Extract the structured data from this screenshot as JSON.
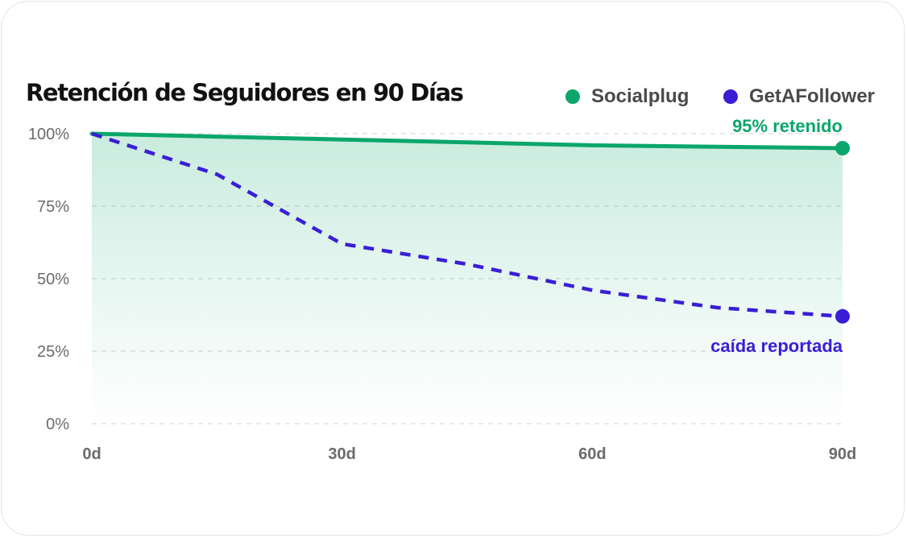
{
  "title": "Retención de Seguidores en 90 Días",
  "colors": {
    "socialplug": "#0ba66b",
    "getafollower": "#3a1ed6",
    "grid": "#d9d9d9",
    "tick": "#6b6b6b"
  },
  "chart_data": {
    "type": "line",
    "title": "Retención de Seguidores en 90 Días",
    "xlabel": "",
    "ylabel": "",
    "x": [
      0,
      15,
      30,
      45,
      60,
      75,
      90
    ],
    "xlim": [
      0,
      90
    ],
    "ylim": [
      0,
      100
    ],
    "xticks": [
      "0d",
      "30d",
      "60d",
      "90d"
    ],
    "xtick_values": [
      0,
      30,
      60,
      90
    ],
    "yticks": [
      "0%",
      "25%",
      "50%",
      "75%",
      "100%"
    ],
    "ytick_values": [
      0,
      25,
      50,
      75,
      100
    ],
    "grid": true,
    "legend_position": "top-right",
    "series": [
      {
        "name": "Socialplug",
        "style": "solid",
        "values": [
          100,
          99,
          98,
          97,
          96,
          95.5,
          95
        ]
      },
      {
        "name": "GetAFollower",
        "style": "dashed",
        "values": [
          100,
          86,
          62,
          55,
          46,
          40,
          37
        ]
      }
    ],
    "annotations": [
      {
        "series": "Socialplug",
        "text": "95% retenido",
        "position": "above-end"
      },
      {
        "series": "GetAFollower",
        "text": "caída reportada",
        "position": "below-end"
      }
    ]
  }
}
